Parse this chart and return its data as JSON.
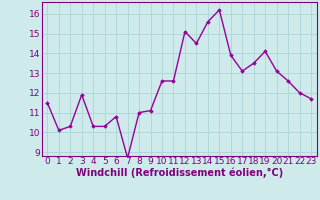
{
  "x": [
    0,
    1,
    2,
    3,
    4,
    5,
    6,
    7,
    8,
    9,
    10,
    11,
    12,
    13,
    14,
    15,
    16,
    17,
    18,
    19,
    20,
    21,
    22,
    23
  ],
  "y": [
    11.5,
    10.1,
    10.3,
    11.9,
    10.3,
    10.3,
    10.8,
    8.7,
    11.0,
    11.1,
    12.6,
    12.6,
    15.1,
    14.5,
    15.6,
    16.2,
    13.9,
    13.1,
    13.5,
    14.1,
    13.1,
    12.6,
    12.0,
    11.7
  ],
  "line_color": "#990099",
  "marker": "D",
  "marker_size": 1.8,
  "line_width": 1.0,
  "bg_color": "#ceeaea",
  "grid_color": "#b0d8d8",
  "xlabel": "Windchill (Refroidissement éolien,°C)",
  "xlabel_color": "#800080",
  "tick_color": "#800080",
  "ylim": [
    8.8,
    16.6
  ],
  "yticks": [
    9,
    10,
    11,
    12,
    13,
    14,
    15,
    16
  ],
  "xlim": [
    -0.5,
    23.5
  ],
  "figsize": [
    3.2,
    2.0
  ],
  "dpi": 100,
  "font_size": 6.5
}
